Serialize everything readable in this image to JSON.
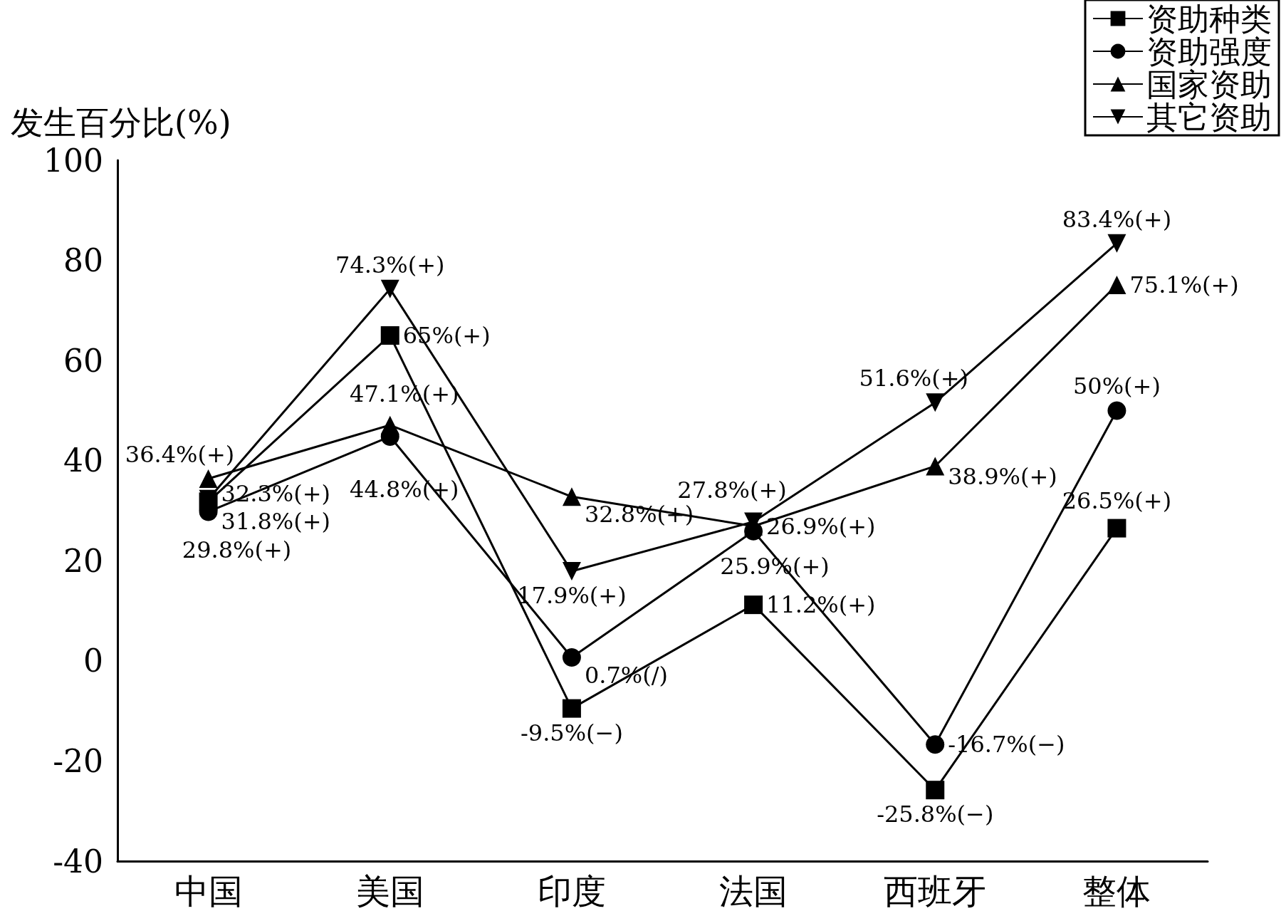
{
  "chart_data": {
    "type": "line",
    "ylabel": "发生百分比(%)",
    "categories": [
      "中国",
      "美国",
      "印度",
      "法国",
      "西班牙",
      "整体"
    ],
    "series": [
      {
        "name": "资助种类",
        "color": "#000000",
        "marker": "square",
        "values": [
          31.8,
          65,
          -9.5,
          11.2,
          -25.8,
          26.5
        ],
        "value_labels": [
          "31.8%(+)",
          "65%(+)",
          "-9.5%(−)",
          "11.2%(+)",
          "-25.8%(−)",
          "26.5%(+)"
        ]
      },
      {
        "name": "资助强度",
        "color": "#000000",
        "marker": "circle",
        "values": [
          29.8,
          44.8,
          0.7,
          25.9,
          -16.7,
          50
        ],
        "value_labels": [
          "29.8%(+)",
          "44.8%(+)",
          "0.7%(/)",
          "25.9%(+)",
          "-16.7%(−)",
          "50%(+)"
        ]
      },
      {
        "name": "国家资助",
        "color": "#000000",
        "marker": "triangle",
        "values": [
          36.4,
          47.1,
          32.8,
          26.9,
          38.9,
          75.1
        ],
        "value_labels": [
          "36.4%(+)",
          "47.1%(+)",
          "32.8%(+)",
          "26.9%(+)",
          "38.9%(+)",
          "75.1%(+)"
        ]
      },
      {
        "name": "其它资助",
        "color": "#000000",
        "marker": "triangle-down",
        "values": [
          32.3,
          74.3,
          17.9,
          27.8,
          51.6,
          83.4
        ],
        "value_labels": [
          "32.3%(+)",
          "74.3%(+)",
          "17.9%(+)",
          "27.8%(+)",
          "51.6%(+)",
          "83.4%(+)"
        ]
      }
    ],
    "ylim": [
      -40,
      100
    ],
    "yticks": [
      -40,
      -20,
      0,
      20,
      40,
      60,
      80,
      100
    ],
    "grid": false,
    "legend": "top right",
    "line_style": "solid"
  }
}
